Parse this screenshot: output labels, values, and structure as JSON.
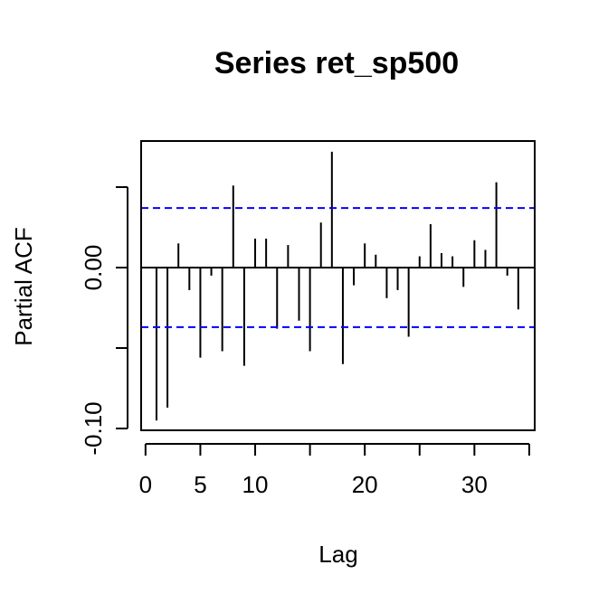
{
  "chart_data": {
    "type": "bar",
    "title": "Series  ret_sp500",
    "xlabel": "Lag",
    "ylabel": "Partial ACF",
    "xlim": [
      0,
      35
    ],
    "ylim": [
      -0.1,
      0.07
    ],
    "x_ticks": [
      0,
      5,
      10,
      20,
      30
    ],
    "x_tick_labels": [
      "0",
      "5",
      "10",
      "20",
      "30"
    ],
    "y_ticks": [
      -0.1,
      0.0
    ],
    "y_tick_labels": [
      "-0.10",
      "0.00"
    ],
    "grid": false,
    "confidence_bound": 0.037,
    "colors": {
      "bars": "#000000",
      "confidence": "#0000ff",
      "axis": "#000000",
      "background": "#ffffff"
    },
    "x": [
      1,
      2,
      3,
      4,
      5,
      6,
      7,
      8,
      9,
      10,
      11,
      12,
      13,
      14,
      15,
      16,
      17,
      18,
      19,
      20,
      21,
      22,
      23,
      24,
      25,
      26,
      27,
      28,
      29,
      30,
      31,
      32,
      33,
      34
    ],
    "values": [
      -0.095,
      -0.087,
      0.015,
      -0.014,
      -0.056,
      -0.005,
      -0.052,
      0.051,
      -0.061,
      0.018,
      0.018,
      -0.038,
      0.014,
      -0.033,
      -0.052,
      0.028,
      0.072,
      -0.06,
      -0.011,
      0.015,
      0.008,
      -0.019,
      -0.014,
      -0.043,
      0.007,
      0.027,
      0.009,
      0.007,
      -0.012,
      0.017,
      0.011,
      0.053,
      -0.005,
      -0.026
    ]
  }
}
